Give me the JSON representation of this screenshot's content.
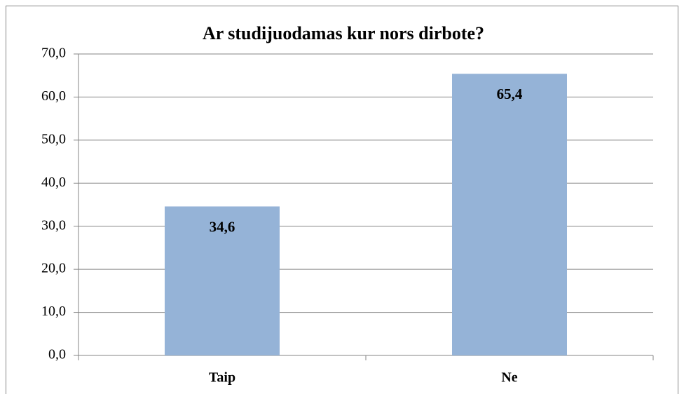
{
  "chart_data": {
    "type": "bar",
    "title": "Ar studijuodamas kur nors dirbote?",
    "categories": [
      "Taip",
      "Ne"
    ],
    "values": [
      34.6,
      65.4
    ],
    "value_labels": [
      "34,6",
      "65,4"
    ],
    "color": "#95b3d7",
    "ylim": [
      0,
      70
    ],
    "yticks": [
      {
        "value": 0,
        "label": "0,0"
      },
      {
        "value": 10,
        "label": "10,0"
      },
      {
        "value": 20,
        "label": "20,0"
      },
      {
        "value": 30,
        "label": "30,0"
      },
      {
        "value": 40,
        "label": "40,0"
      },
      {
        "value": 50,
        "label": "50,0"
      },
      {
        "value": 60,
        "label": "60,0"
      },
      {
        "value": 70,
        "label": "70,0"
      }
    ],
    "grid": true
  }
}
